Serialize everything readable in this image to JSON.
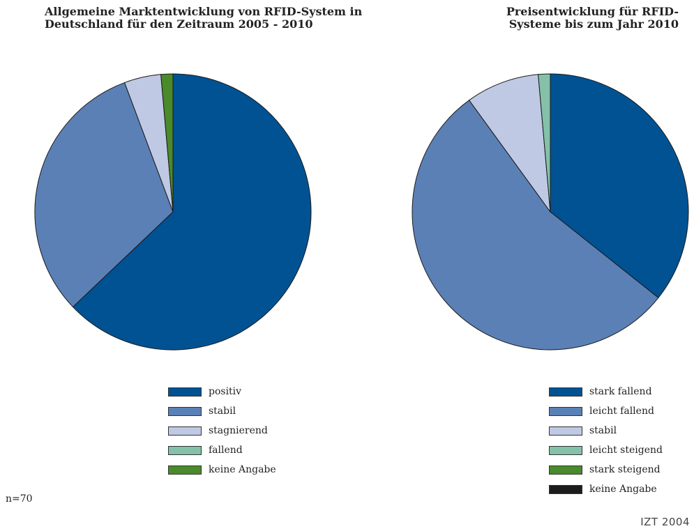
{
  "chart_data": [
    {
      "type": "pie",
      "title": "Allgemeine Marktentwicklung von RFID-System in Deutschland für den Zeitraum 2005 - 2010",
      "categories": [
        "positiv",
        "stabil",
        "stagnierend",
        "fallend",
        "keine Angabe"
      ],
      "values": [
        62.9,
        31.4,
        4.3,
        0,
        1.4
      ],
      "colors": [
        "#005293",
        "#5b80b6",
        "#bfc9e3",
        "#84c1a8",
        "#4a8a2a"
      ]
    },
    {
      "type": "pie",
      "title": "Preisentwicklung für RFID-Systeme bis zum Jahr 2010",
      "categories": [
        "stark fallend",
        "leicht fallend",
        "stabil",
        "leicht steigend",
        "stark steigend",
        "keine Angabe"
      ],
      "values": [
        35.7,
        54.3,
        8.6,
        1.4,
        0,
        0
      ],
      "colors": [
        "#005293",
        "#5b80b6",
        "#bfc9e3",
        "#84c1a8",
        "#4a8a2a",
        "#1c1c1c"
      ]
    }
  ],
  "titles": {
    "left": "Allgemeine Marktentwicklung von RFID-System in Deutschland für den Zeitraum 2005 - 2010",
    "right": "Preisentwicklung für RFID-Systeme bis zum Jahr 2010"
  },
  "footnote": "n=70",
  "credit": "IZT 2004"
}
